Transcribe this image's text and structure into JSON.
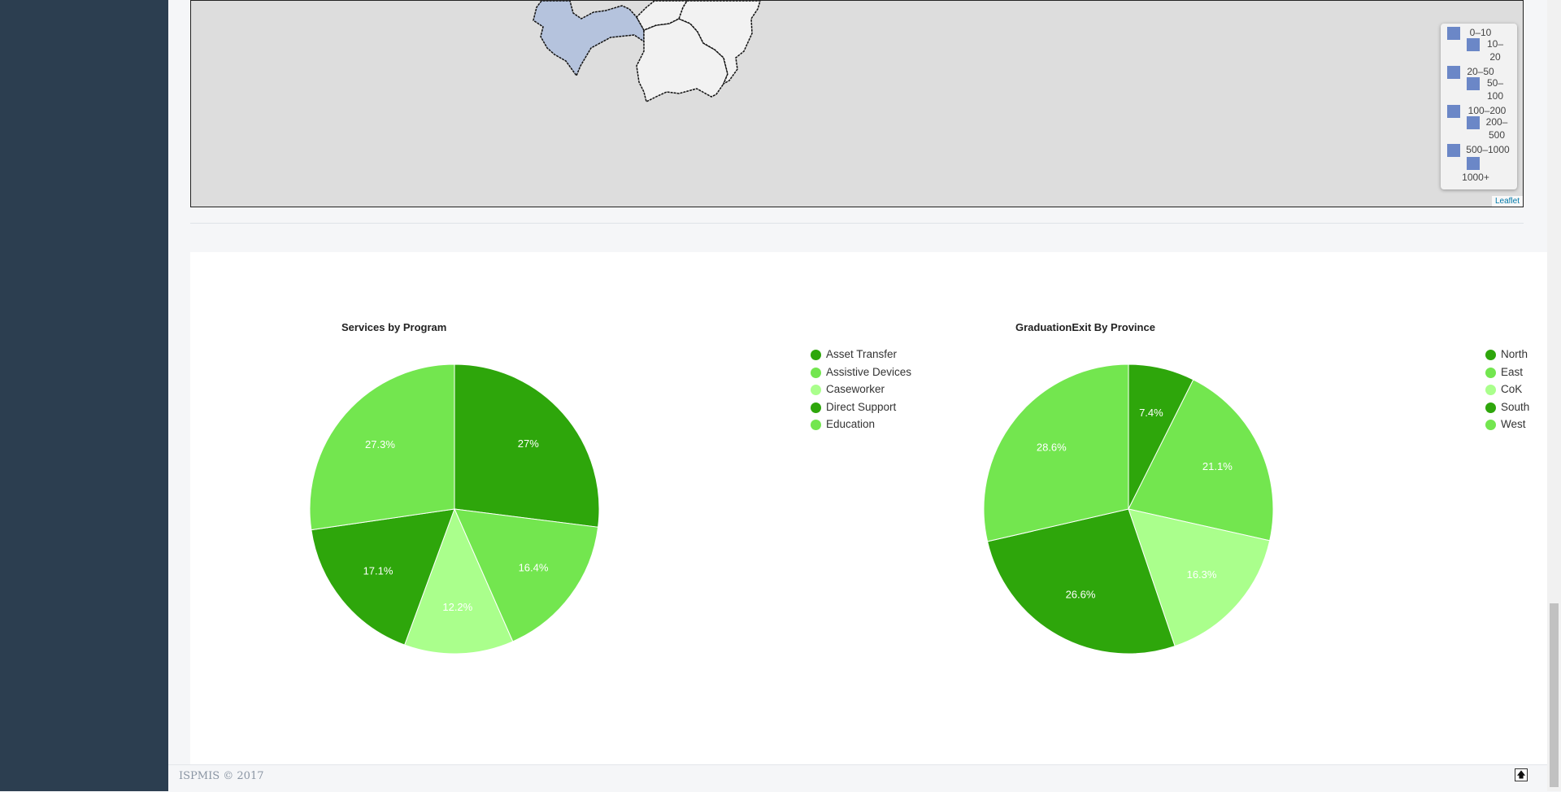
{
  "map": {
    "legend": [
      "0–10",
      "10–20",
      "20–50",
      "50–100",
      "100–200",
      "200–500",
      "500–1000",
      "1000+"
    ],
    "legend_color": "#6b87c7",
    "attribution": "Leaflet"
  },
  "footer": {
    "text": "ISPMIS © 2017",
    "back_to_top_icon": "arrow-up-icon"
  },
  "chart_data": [
    {
      "type": "pie",
      "title": "Services by Program",
      "categories": [
        "Asset Transfer",
        "Assistive Devices",
        "Caseworker",
        "Direct Support",
        "Education"
      ],
      "values": [
        27,
        16.4,
        12.2,
        17.1,
        27.3
      ],
      "labels": [
        "27%",
        "16.4%",
        "12.2%",
        "17.1%",
        "27.3%"
      ],
      "colors": [
        "#2ea60b",
        "#73e64f",
        "#aaff8c",
        "#2ea60b",
        "#73e64f"
      ],
      "legend": "right"
    },
    {
      "type": "pie",
      "title": "GraduationExit By Province",
      "categories": [
        "North",
        "East",
        "CoK",
        "South",
        "West"
      ],
      "values": [
        7.4,
        21.1,
        16.3,
        26.6,
        28.6
      ],
      "labels": [
        "7.4%",
        "21.1%",
        "16.3%",
        "26.6%",
        "28.6%"
      ],
      "colors": [
        "#2ea60b",
        "#73e64f",
        "#aaff8c",
        "#2ea60b",
        "#73e64f"
      ],
      "legend": "right"
    }
  ]
}
